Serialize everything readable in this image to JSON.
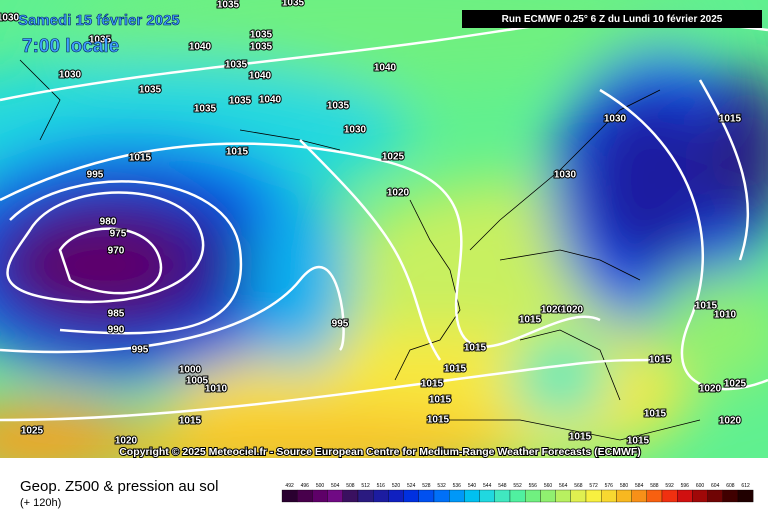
{
  "header": {
    "date": "Samedi 15 février 2025",
    "time": "7:00 locale",
    "run": "Run ECMWF 0.25° 6 Z du Lundi 10 février 2025"
  },
  "isobar_labels": [
    1030,
    1035,
    1035,
    1035,
    1040,
    1035,
    1035,
    1030,
    1035,
    1040,
    1035,
    1040,
    1035,
    1035,
    1040,
    1035,
    1030,
    1015,
    1015,
    1025,
    995,
    1030,
    1020,
    980,
    975,
    970,
    985,
    990,
    995,
    995,
    1015,
    1020,
    1020,
    1015,
    1000,
    1005,
    1010,
    1015,
    1015,
    1015,
    1015,
    1015,
    1025,
    1020,
    1015,
    1015,
    1015,
    1015,
    1010,
    1020,
    1025,
    1020,
    1030,
    1015,
    1015
  ],
  "copyright": "Copyright © 2025 Meteociel.fr - Source European Centre for Medium-Range Weather Forecasts (ECMWF)",
  "footer": {
    "title": "Geop. Z500 & pression au sol",
    "lead": "(+ 120h)"
  },
  "legend": {
    "values": [
      492,
      496,
      500,
      504,
      508,
      512,
      516,
      520,
      524,
      528,
      532,
      536,
      540,
      544,
      548,
      552,
      556,
      560,
      564,
      568,
      572,
      576,
      580,
      584,
      588,
      592,
      596,
      600,
      604,
      608,
      612
    ],
    "colors": [
      "#2a0030",
      "#48004c",
      "#5e0068",
      "#700a84",
      "#3a1060",
      "#2a1a80",
      "#1c1ca0",
      "#1020c0",
      "#0030e0",
      "#0050f0",
      "#0070f8",
      "#0098f8",
      "#00c0f0",
      "#20d8e0",
      "#40e8c0",
      "#50f0a0",
      "#70f080",
      "#90f070",
      "#b8f060",
      "#e0f050",
      "#f8f040",
      "#f8d830",
      "#f8b820",
      "#f89018",
      "#f86010",
      "#f03010",
      "#d01010",
      "#a00808",
      "#700404",
      "#400000",
      "#200000"
    ]
  }
}
